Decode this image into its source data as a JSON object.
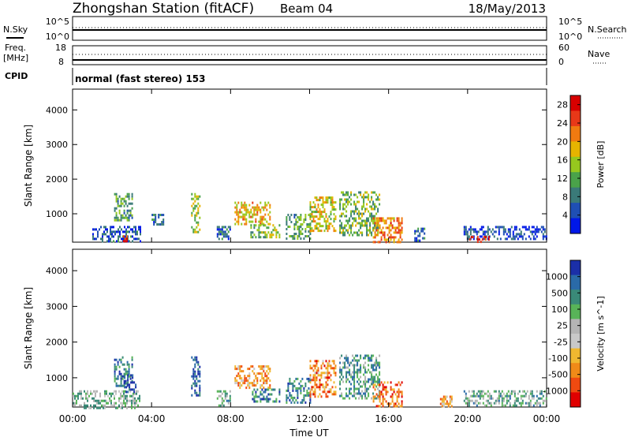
{
  "header": {
    "title": "Zhongshan Station (fitACF)",
    "beam": "Beam 04",
    "date": "18/May/2013"
  },
  "top_panel": {
    "left_label": "N.Sky",
    "left_ticks": [
      "10^5",
      "10^0"
    ],
    "right_ticks": [
      "10^5",
      "10^0"
    ],
    "right_label": "N.Search"
  },
  "freq_panel": {
    "label_line1": "Freq.",
    "label_line2": "[MHz]",
    "left_ticks": [
      "18",
      "8"
    ],
    "right_ticks": [
      "60",
      "0"
    ],
    "right_label": "Nave"
  },
  "cpid": {
    "label": "CPID",
    "text": "normal (fast stereo) 153"
  },
  "colors": {
    "power": [
      "#0018e8",
      "#1f4fb4",
      "#3a7a78",
      "#4aa24a",
      "#96c81e",
      "#e6b400",
      "#f07a10",
      "#e83818",
      "#d80000"
    ],
    "velocity": [
      "#e00000",
      "#f04a10",
      "#f08a18",
      "#f0b830",
      "#c8c8c8",
      "#b4b4b4",
      "#58b458",
      "#3a8a78",
      "#2a6aa8",
      "#1b2fa8"
    ]
  },
  "chart_data": [
    {
      "type": "heatmap",
      "ylabel": "Slant Range [km]",
      "xlabel": "Time UT",
      "x_ticks": [
        "00:00",
        "04:00",
        "08:00",
        "12:00",
        "16:00",
        "20:00",
        "00:00"
      ],
      "y_ticks": [
        "1000",
        "2000",
        "3000",
        "4000"
      ],
      "xlim_hours": [
        0,
        24
      ],
      "ylim_km": [
        180,
        4600
      ],
      "colorbar": {
        "label": "Power [dB]",
        "ticks": [
          "4",
          "8",
          "12",
          "16",
          "20",
          "24",
          "28"
        ],
        "range": [
          0,
          30
        ]
      },
      "echo_regions": [
        {
          "t0": 1.0,
          "t1": 3.4,
          "r0": 180,
          "r1": 650,
          "level": 0.18
        },
        {
          "t0": 2.1,
          "t1": 3.0,
          "r0": 800,
          "r1": 1600,
          "level": 0.38
        },
        {
          "t0": 2.55,
          "t1": 2.85,
          "r0": 180,
          "r1": 380,
          "level": 0.9
        },
        {
          "t0": 4.0,
          "t1": 4.6,
          "r0": 700,
          "r1": 1000,
          "level": 0.25
        },
        {
          "t0": 6.0,
          "t1": 6.4,
          "r0": 500,
          "r1": 1600,
          "level": 0.5
        },
        {
          "t0": 7.3,
          "t1": 8.0,
          "r0": 250,
          "r1": 650,
          "level": 0.25
        },
        {
          "t0": 8.2,
          "t1": 10.0,
          "r0": 700,
          "r1": 1350,
          "level": 0.62
        },
        {
          "t0": 9.0,
          "t1": 10.5,
          "r0": 350,
          "r1": 700,
          "level": 0.45
        },
        {
          "t0": 10.8,
          "t1": 12.0,
          "r0": 300,
          "r1": 1000,
          "level": 0.38
        },
        {
          "t0": 12.0,
          "t1": 13.3,
          "r0": 500,
          "r1": 1500,
          "level": 0.55
        },
        {
          "t0": 13.5,
          "t1": 15.5,
          "r0": 400,
          "r1": 1650,
          "level": 0.42
        },
        {
          "t0": 15.2,
          "t1": 16.7,
          "r0": 200,
          "r1": 900,
          "level": 0.72
        },
        {
          "t0": 17.3,
          "t1": 17.8,
          "r0": 250,
          "r1": 600,
          "level": 0.2
        },
        {
          "t0": 19.8,
          "t1": 24.0,
          "r0": 250,
          "r1": 650,
          "level": 0.15
        },
        {
          "t0": 20.0,
          "t1": 21.1,
          "r0": 180,
          "r1": 360,
          "level": 0.92
        }
      ]
    },
    {
      "type": "heatmap",
      "ylabel": "Slant Range [km]",
      "xlabel": "Time UT",
      "x_ticks": [
        "00:00",
        "04:00",
        "08:00",
        "12:00",
        "16:00",
        "20:00",
        "00:00"
      ],
      "y_ticks": [
        "1000",
        "2000",
        "3000",
        "4000"
      ],
      "xlim_hours": [
        0,
        24
      ],
      "ylim_km": [
        180,
        4600
      ],
      "colorbar": {
        "label": "Velocity [m s^-1]",
        "ticks": [
          "1000",
          "500",
          "100",
          "25",
          "-25",
          "-100",
          "-500",
          "-1000"
        ],
        "range": [
          -1200,
          1200
        ]
      },
      "echo_regions": [
        {
          "t0": 0.0,
          "t1": 3.4,
          "r0": 180,
          "r1": 650,
          "level": 0.62
        },
        {
          "t0": 2.1,
          "t1": 3.0,
          "r0": 800,
          "r1": 1600,
          "level": 0.82
        },
        {
          "t0": 2.6,
          "t1": 3.2,
          "r0": 600,
          "r1": 1100,
          "level": 0.95
        },
        {
          "t0": 6.0,
          "t1": 6.4,
          "r0": 500,
          "r1": 1600,
          "level": 0.88
        },
        {
          "t0": 7.3,
          "t1": 8.0,
          "r0": 250,
          "r1": 650,
          "level": 0.7
        },
        {
          "t0": 8.2,
          "t1": 10.0,
          "r0": 700,
          "r1": 1350,
          "level": 0.3
        },
        {
          "t0": 9.0,
          "t1": 10.5,
          "r0": 350,
          "r1": 700,
          "level": 0.8
        },
        {
          "t0": 10.8,
          "t1": 12.0,
          "r0": 300,
          "r1": 1000,
          "level": 0.78
        },
        {
          "t0": 12.0,
          "t1": 13.3,
          "r0": 500,
          "r1": 1500,
          "level": 0.25
        },
        {
          "t0": 13.5,
          "t1": 15.5,
          "r0": 400,
          "r1": 1650,
          "level": 0.72
        },
        {
          "t0": 15.2,
          "t1": 16.7,
          "r0": 200,
          "r1": 900,
          "level": 0.2
        },
        {
          "t0": 18.6,
          "t1": 19.2,
          "r0": 200,
          "r1": 500,
          "level": 0.3
        },
        {
          "t0": 19.8,
          "t1": 24.0,
          "r0": 250,
          "r1": 650,
          "level": 0.66
        }
      ]
    }
  ]
}
